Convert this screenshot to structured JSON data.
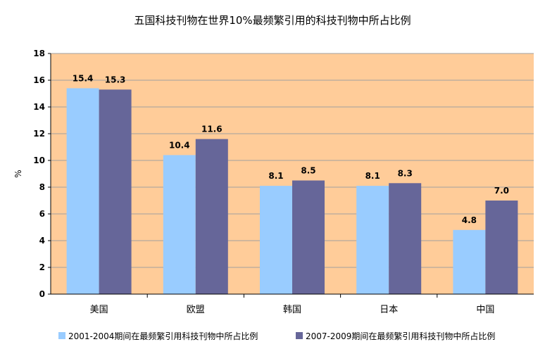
{
  "chart_data": {
    "type": "bar",
    "title": "五国科技刊物在世界10%最频繁引用的科技刊物中所占比例",
    "ylabel": "%",
    "xlabel": "",
    "ylim": [
      0,
      18
    ],
    "yticks": [
      "0",
      "2",
      "4",
      "6",
      "8",
      "10",
      "12",
      "14",
      "16",
      "18"
    ],
    "grid": true,
    "legend_position": "bottom",
    "categories": [
      "美国",
      "欧盟",
      "韩国",
      "日本",
      "中国"
    ],
    "series": [
      {
        "name": "2001-2004期间在最频繁引用科技刊物中所占比例",
        "values": [
          15.4,
          10.4,
          8.1,
          8.1,
          4.8
        ],
        "labels": [
          "15.4",
          "10.4",
          "8.1",
          "8.1",
          "4.8"
        ],
        "color": "#99ccff"
      },
      {
        "name": "2007-2009期间在最频繁引用科技刊物中所占比例",
        "values": [
          15.3,
          11.6,
          8.5,
          8.3,
          7.0
        ],
        "labels": [
          "15.3",
          "11.6",
          "8.5",
          "8.3",
          "7.0"
        ],
        "color": "#666699"
      }
    ],
    "plot_background": "#ffcc99"
  }
}
